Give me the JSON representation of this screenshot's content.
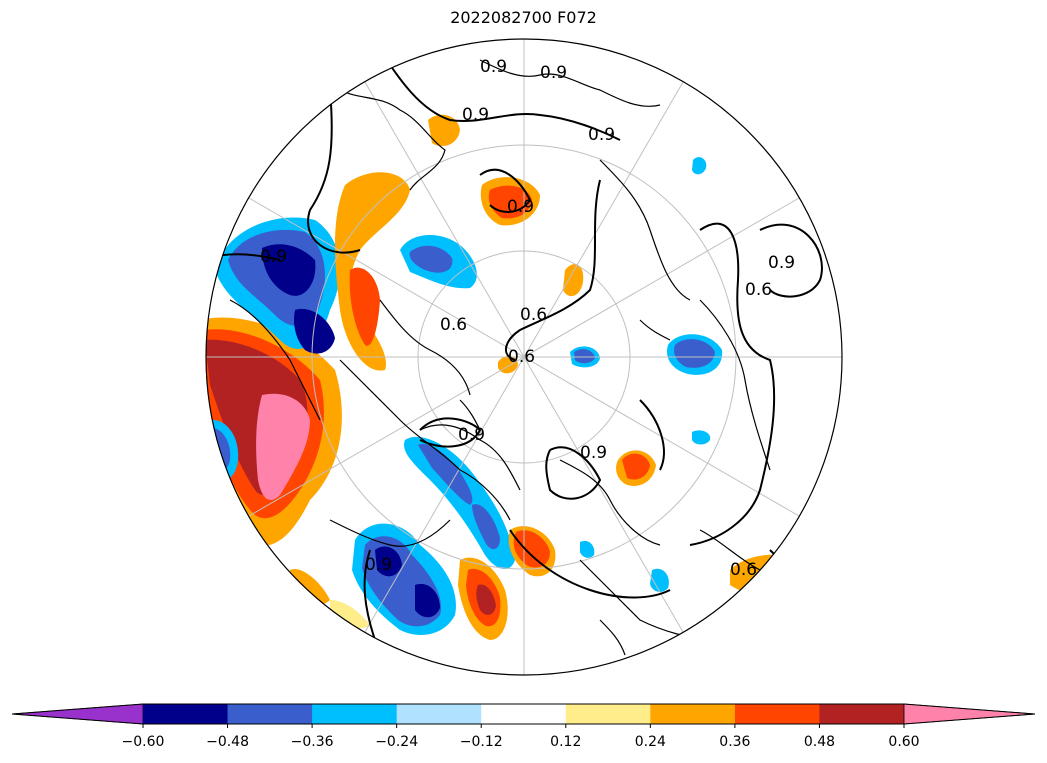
{
  "title": "2022082700 F072",
  "contour_labels": [
    "0.6",
    "0.9"
  ],
  "colorbar": {
    "colors": [
      "#9932cc",
      "#00008b",
      "#3a5fcd",
      "#00bfff",
      "#b0e2ff",
      "#ffffff",
      "#ffec8b",
      "#ffa500",
      "#ff4500",
      "#b22222",
      "#ff82ab"
    ],
    "ticks": [
      "−0.60",
      "−0.48",
      "−0.36",
      "−0.24",
      "−0.12",
      "0.12",
      "0.24",
      "0.36",
      "0.48",
      "0.60"
    ],
    "extend": "both"
  }
}
